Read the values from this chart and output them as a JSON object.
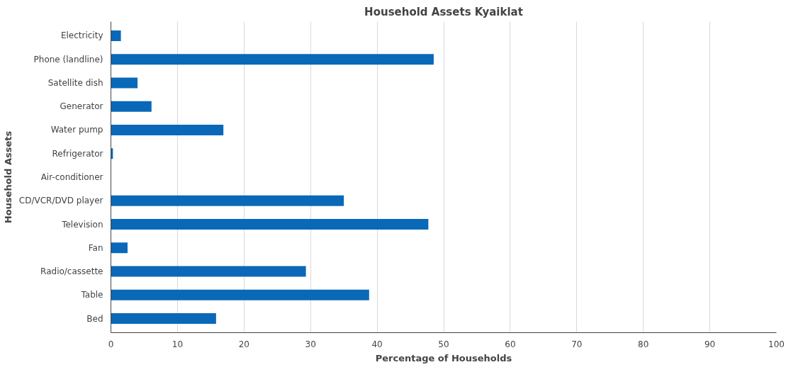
{
  "chart_data": {
    "type": "bar",
    "orientation": "horizontal",
    "title": "Household Assets Kyaiklat",
    "xlabel": "Percentage of Households",
    "ylabel": "Household Assets",
    "categories": [
      "Electricity",
      "Phone (landline)",
      "Satellite dish",
      "Generator",
      "Water pump",
      "Refrigerator",
      "Air-conditioner",
      "CD/VCR/DVD player",
      "Television",
      "Fan",
      "Radio/cassette",
      "Table",
      "Bed"
    ],
    "values": [
      1.5,
      48.5,
      4.0,
      6.1,
      16.9,
      0.3,
      0,
      35.0,
      47.7,
      2.5,
      29.3,
      38.8,
      15.8
    ],
    "color": "#0a68b8",
    "xlim": [
      0,
      100
    ],
    "xticks": [
      0,
      10,
      20,
      30,
      40,
      50,
      60,
      70,
      80,
      90,
      100
    ],
    "grid": "x"
  }
}
